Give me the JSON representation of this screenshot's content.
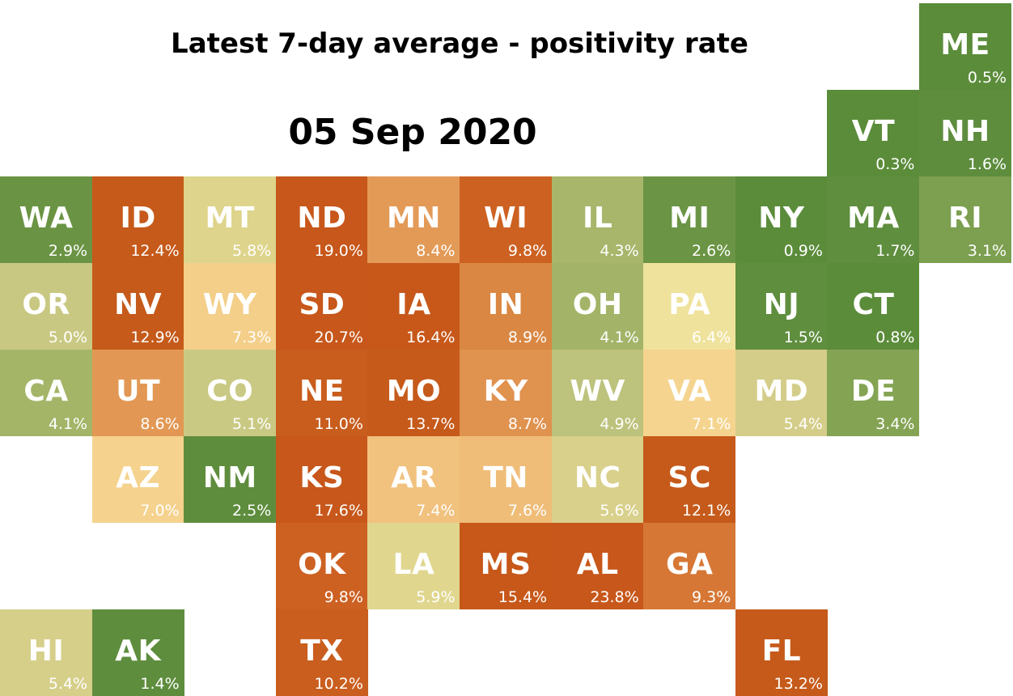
{
  "chart_data": {
    "type": "heatmap",
    "title": "Latest 7-day average - positivity rate",
    "subtitle": "05 Sep 2020",
    "unit": "%",
    "color_scale": {
      "low": "#5a8a3a",
      "mid": "#ede29a",
      "high": "#c8581a"
    },
    "states": [
      {
        "abbr": "ME",
        "value": 0.5,
        "label": "0.5%",
        "row": 0,
        "col": 10,
        "color": "#5b8c3a"
      },
      {
        "abbr": "VT",
        "value": 0.3,
        "label": "0.3%",
        "row": 1,
        "col": 9,
        "color": "#5b8c3a"
      },
      {
        "abbr": "NH",
        "value": 1.6,
        "label": "1.6%",
        "row": 1,
        "col": 10,
        "color": "#5e8d3d"
      },
      {
        "abbr": "WA",
        "value": 2.9,
        "label": "2.9%",
        "row": 2,
        "col": 0,
        "color": "#6a9444"
      },
      {
        "abbr": "ID",
        "value": 12.4,
        "label": "12.4%",
        "row": 2,
        "col": 1,
        "color": "#c65a1a"
      },
      {
        "abbr": "MT",
        "value": 5.8,
        "label": "5.8%",
        "row": 2,
        "col": 2,
        "color": "#ded48b"
      },
      {
        "abbr": "ND",
        "value": 19.0,
        "label": "19.0%",
        "row": 2,
        "col": 3,
        "color": "#c7571a"
      },
      {
        "abbr": "MN",
        "value": 8.4,
        "label": "8.4%",
        "row": 2,
        "col": 4,
        "color": "#e39a57"
      },
      {
        "abbr": "WI",
        "value": 9.8,
        "label": "9.8%",
        "row": 2,
        "col": 5,
        "color": "#cd6122"
      },
      {
        "abbr": "IL",
        "value": 4.3,
        "label": "4.3%",
        "row": 2,
        "col": 6,
        "color": "#a7b66a"
      },
      {
        "abbr": "MI",
        "value": 2.6,
        "label": "2.6%",
        "row": 2,
        "col": 7,
        "color": "#6b9545"
      },
      {
        "abbr": "NY",
        "value": 0.9,
        "label": "0.9%",
        "row": 2,
        "col": 8,
        "color": "#5b8c3a"
      },
      {
        "abbr": "MA",
        "value": 1.7,
        "label": "1.7%",
        "row": 2,
        "col": 9,
        "color": "#5f8e3e"
      },
      {
        "abbr": "RI",
        "value": 3.1,
        "label": "3.1%",
        "row": 2,
        "col": 10,
        "color": "#7c9f50"
      },
      {
        "abbr": "OR",
        "value": 5.0,
        "label": "5.0%",
        "row": 3,
        "col": 0,
        "color": "#c9c882"
      },
      {
        "abbr": "NV",
        "value": 12.9,
        "label": "12.9%",
        "row": 3,
        "col": 1,
        "color": "#c55a1a"
      },
      {
        "abbr": "WY",
        "value": 7.3,
        "label": "7.3%",
        "row": 3,
        "col": 2,
        "color": "#f3cf8a"
      },
      {
        "abbr": "SD",
        "value": 20.7,
        "label": "20.7%",
        "row": 3,
        "col": 3,
        "color": "#c7571a"
      },
      {
        "abbr": "IA",
        "value": 16.4,
        "label": "16.4%",
        "row": 3,
        "col": 4,
        "color": "#c7581a"
      },
      {
        "abbr": "IN",
        "value": 8.9,
        "label": "8.9%",
        "row": 3,
        "col": 5,
        "color": "#d98742"
      },
      {
        "abbr": "OH",
        "value": 4.1,
        "label": "4.1%",
        "row": 3,
        "col": 6,
        "color": "#a3b468"
      },
      {
        "abbr": "PA",
        "value": 6.4,
        "label": "6.4%",
        "row": 3,
        "col": 7,
        "color": "#efe29c"
      },
      {
        "abbr": "NJ",
        "value": 1.5,
        "label": "1.5%",
        "row": 3,
        "col": 8,
        "color": "#5f8e3e"
      },
      {
        "abbr": "CT",
        "value": 0.8,
        "label": "0.8%",
        "row": 3,
        "col": 9,
        "color": "#5b8c3a"
      },
      {
        "abbr": "CA",
        "value": 4.1,
        "label": "4.1%",
        "row": 4,
        "col": 0,
        "color": "#a4b568"
      },
      {
        "abbr": "UT",
        "value": 8.6,
        "label": "8.6%",
        "row": 4,
        "col": 1,
        "color": "#e29854"
      },
      {
        "abbr": "CO",
        "value": 5.1,
        "label": "5.1%",
        "row": 4,
        "col": 2,
        "color": "#c9c984"
      },
      {
        "abbr": "NE",
        "value": 11.0,
        "label": "11.0%",
        "row": 4,
        "col": 3,
        "color": "#c95d1d"
      },
      {
        "abbr": "MO",
        "value": 13.7,
        "label": "13.7%",
        "row": 4,
        "col": 4,
        "color": "#c65a1a"
      },
      {
        "abbr": "KY",
        "value": 8.7,
        "label": "8.7%",
        "row": 4,
        "col": 5,
        "color": "#e0924f"
      },
      {
        "abbr": "WV",
        "value": 4.9,
        "label": "4.9%",
        "row": 4,
        "col": 6,
        "color": "#bdc27c"
      },
      {
        "abbr": "VA",
        "value": 7.1,
        "label": "7.1%",
        "row": 4,
        "col": 7,
        "color": "#f5d48f"
      },
      {
        "abbr": "MD",
        "value": 5.4,
        "label": "5.4%",
        "row": 4,
        "col": 8,
        "color": "#d4cd89"
      },
      {
        "abbr": "DE",
        "value": 3.4,
        "label": "3.4%",
        "row": 4,
        "col": 9,
        "color": "#84a454"
      },
      {
        "abbr": "AZ",
        "value": 7.0,
        "label": "7.0%",
        "row": 5,
        "col": 1,
        "color": "#f5d28d"
      },
      {
        "abbr": "NM",
        "value": 2.5,
        "label": "2.5%",
        "row": 5,
        "col": 2,
        "color": "#5e8d3d"
      },
      {
        "abbr": "KS",
        "value": 17.6,
        "label": "17.6%",
        "row": 5,
        "col": 3,
        "color": "#c7571a"
      },
      {
        "abbr": "AR",
        "value": 7.4,
        "label": "7.4%",
        "row": 5,
        "col": 4,
        "color": "#f1c17e"
      },
      {
        "abbr": "TN",
        "value": 7.6,
        "label": "7.6%",
        "row": 5,
        "col": 5,
        "color": "#efbd78"
      },
      {
        "abbr": "NC",
        "value": 5.6,
        "label": "5.6%",
        "row": 5,
        "col": 6,
        "color": "#d8d08b"
      },
      {
        "abbr": "SC",
        "value": 12.1,
        "label": "12.1%",
        "row": 5,
        "col": 7,
        "color": "#c65a1a"
      },
      {
        "abbr": "OK",
        "value": 9.8,
        "label": "9.8%",
        "row": 6,
        "col": 3,
        "color": "#cd6122"
      },
      {
        "abbr": "LA",
        "value": 5.9,
        "label": "5.9%",
        "row": 6,
        "col": 4,
        "color": "#e0d68e"
      },
      {
        "abbr": "MS",
        "value": 15.4,
        "label": "15.4%",
        "row": 6,
        "col": 5,
        "color": "#c7581a"
      },
      {
        "abbr": "AL",
        "value": 23.8,
        "label": "23.8%",
        "row": 6,
        "col": 6,
        "color": "#c7571a"
      },
      {
        "abbr": "GA",
        "value": 9.3,
        "label": "9.3%",
        "row": 6,
        "col": 7,
        "color": "#d67735"
      },
      {
        "abbr": "HI",
        "value": 5.4,
        "label": "5.4%",
        "row": 7,
        "col": 0,
        "color": "#d6cf8a"
      },
      {
        "abbr": "AK",
        "value": 1.4,
        "label": "1.4%",
        "row": 7,
        "col": 1,
        "color": "#5e8d3d"
      },
      {
        "abbr": "TX",
        "value": 10.2,
        "label": "10.2%",
        "row": 7,
        "col": 3,
        "color": "#ca5e1e"
      },
      {
        "abbr": "FL",
        "value": 13.2,
        "label": "13.2%",
        "row": 7,
        "col": 8,
        "color": "#c65a1a"
      }
    ]
  }
}
